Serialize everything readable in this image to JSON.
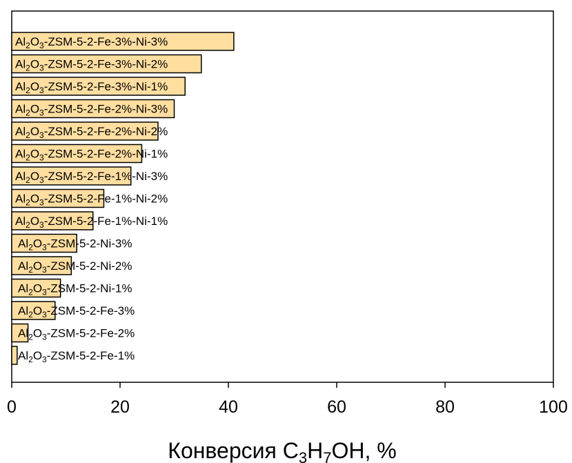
{
  "chart_data": {
    "type": "bar",
    "orientation": "horizontal",
    "categories": [
      {
        "parts": [
          "Al",
          "2",
          "O",
          "3",
          "-ZSM-5-2-Fe-1%"
        ]
      },
      {
        "parts": [
          "Al",
          "2",
          "O",
          "3",
          "-ZSM-5-2-Fe-2%"
        ]
      },
      {
        "parts": [
          "Al",
          "2",
          "O",
          "3",
          "-ZSM-5-2-Fe-3%"
        ]
      },
      {
        "parts": [
          "Al",
          "2",
          "O",
          "3",
          "-ZSM-5-2-Ni-1%"
        ]
      },
      {
        "parts": [
          "Al",
          "2",
          "O",
          "3",
          "-ZSM-5-2-Ni-2%"
        ]
      },
      {
        "parts": [
          "Al",
          "2",
          "O",
          "3",
          "-ZSM-5-2-Ni-3%"
        ]
      },
      {
        "parts": [
          "Al",
          "2",
          "O",
          "3",
          "-ZSM-5-2-Fe-1%-Ni-1%"
        ]
      },
      {
        "parts": [
          "Al",
          "2",
          "O",
          "3",
          "-ZSM-5-2-Fe-1%-Ni-2%"
        ]
      },
      {
        "parts": [
          "Al",
          "2",
          "O",
          "3",
          "-ZSM-5-2-Fe-1%-Ni-3%"
        ]
      },
      {
        "parts": [
          "Al",
          "2",
          "O",
          "3",
          "-ZSM-5-2-Fe-2%-Ni-1%"
        ]
      },
      {
        "parts": [
          "Al",
          "2",
          "O",
          "3",
          "-ZSM-5-2-Fe-2%-Ni-2%"
        ]
      },
      {
        "parts": [
          "Al",
          "2",
          "O",
          "3",
          "-ZSM-5-2-Fe-2%-Ni-3%"
        ]
      },
      {
        "parts": [
          "Al",
          "2",
          "O",
          "3",
          "-ZSM-5-2-Fe-3%-Ni-1%"
        ]
      },
      {
        "parts": [
          "Al",
          "2",
          "O",
          "3",
          "-ZSM-5-2-Fe-3%-Ni-2%"
        ]
      },
      {
        "parts": [
          "Al",
          "2",
          "O",
          "3",
          "-ZSM-5-2-Fe-3%-Ni-3%"
        ]
      }
    ],
    "values": [
      1,
      3,
      8,
      9,
      11,
      12,
      15,
      17,
      22,
      24,
      27,
      30,
      32,
      35,
      41
    ],
    "xlim": [
      0,
      100
    ],
    "xticks": [
      "0",
      "20",
      "40",
      "60",
      "80",
      "100"
    ],
    "xlabel": {
      "parts": [
        "Конверсия C",
        "3",
        "H",
        "7",
        "OH, %"
      ]
    },
    "ylabel": "",
    "grid": false,
    "legend": "none",
    "colors": {
      "bar_fill": "#FFDEA0",
      "bar_stroke": "#000000",
      "axis": "#000000",
      "background": "#FFFFFF"
    }
  }
}
